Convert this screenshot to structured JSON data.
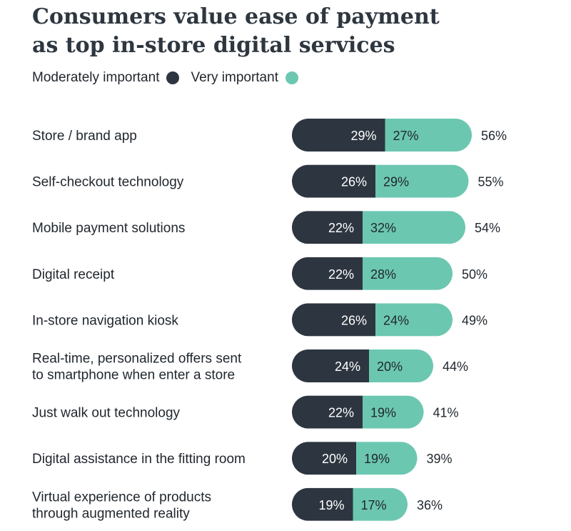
{
  "title": "Consumers value ease of payment as top in-store digital services",
  "legend": {
    "moderate_label": "Moderately important",
    "very_label": "Very important"
  },
  "colors": {
    "moderate": "#2d3640",
    "very": "#6cc7b0",
    "text": "#1f262d"
  },
  "chart_data": {
    "type": "bar",
    "orientation": "horizontal",
    "stacked": true,
    "categories": [
      [
        "Store / brand app"
      ],
      [
        "Self-checkout technology"
      ],
      [
        "Mobile payment solutions"
      ],
      [
        "Digital receipt"
      ],
      [
        "In-store navigation kiosk"
      ],
      [
        "Real-time, personalized offers sent",
        "to smartphone when enter a store"
      ],
      [
        "Just walk out technology"
      ],
      [
        "Digital assistance in the fitting room"
      ],
      [
        "Virtual experience of products",
        "through augmented reality"
      ]
    ],
    "series": [
      {
        "name": "Moderately important",
        "values": [
          29,
          26,
          22,
          22,
          26,
          24,
          22,
          20,
          19
        ]
      },
      {
        "name": "Very important",
        "values": [
          27,
          29,
          32,
          28,
          24,
          20,
          19,
          19,
          17
        ]
      }
    ],
    "totals": [
      56,
      55,
      54,
      50,
      49,
      44,
      41,
      39,
      36
    ],
    "value_suffix": "%",
    "legend_position": "top-left"
  }
}
